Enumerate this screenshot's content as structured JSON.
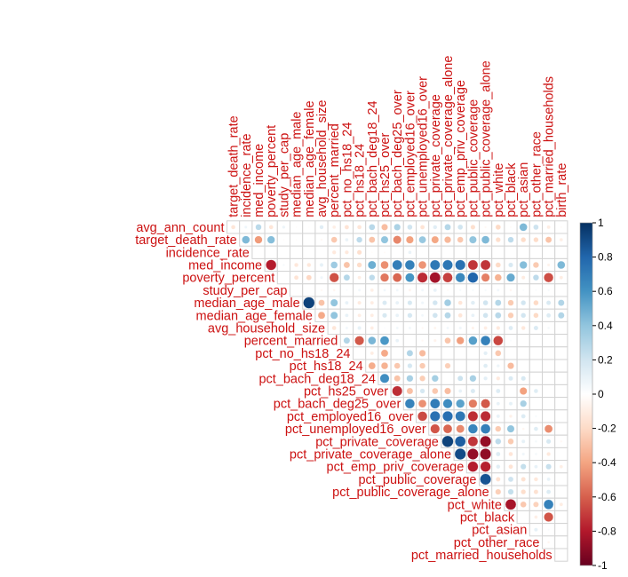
{
  "chart_data": {
    "type": "heatmap",
    "layout": "upper-triangle",
    "glyph": "circle",
    "title": "",
    "xlabel": "",
    "ylabel": "",
    "row_labels": [
      "avg_ann_count",
      "target_death_rate",
      "incidence_rate",
      "med_income",
      "poverty_percent",
      "study_per_cap",
      "median_age_male",
      "median_age_female",
      "avg_household_size",
      "percent_married",
      "pct_no_hs18_24",
      "pct_hs18_24",
      "pct_bach_deg18_24",
      "pct_hs25_over",
      "pct_bach_deg25_over",
      "pct_employed16_over",
      "pct_unemployed16_over",
      "pct_private_coverage",
      "pct_private_coverage_alone",
      "pct_emp_priv_coverage",
      "pct_public_coverage",
      "pct_public_coverage_alone",
      "pct_white",
      "pct_black",
      "pct_asian",
      "pct_other_race",
      "pct_married_households"
    ],
    "col_labels": [
      "target_death_rate",
      "incidence_rate",
      "med_income",
      "poverty_percent",
      "study_per_cap",
      "median_age_male",
      "median_age_female",
      "avg_household_size",
      "percent_married",
      "pct_no_hs18_24",
      "pct_hs18_24",
      "pct_bach_deg18_24",
      "pct_hs25_over",
      "pct_bach_deg25_over",
      "pct_employed16_over",
      "pct_unemployed16_over",
      "pct_private_coverage",
      "pct_private_coverage_alone",
      "pct_emp_priv_coverage",
      "pct_public_coverage",
      "pct_public_coverage_alone",
      "pct_white",
      "pct_black",
      "pct_asian",
      "pct_other_race",
      "pct_married_households",
      "birth_rate"
    ],
    "values": [
      [
        -0.14,
        0.07,
        0.27,
        -0.14,
        0.08,
        -0.02,
        -0.02,
        0.13,
        -0.09,
        -0.15,
        -0.14,
        0.28,
        -0.31,
        0.32,
        0.2,
        -0.15,
        0.13,
        0.29,
        0.2,
        -0.17,
        -0.04,
        -0.2,
        -0.03,
        0.45,
        0.21,
        -0.1,
        -0.03
      ],
      [
        0.45,
        -0.43,
        0.43,
        -0.02,
        -0.02,
        0.01,
        -0.04,
        -0.27,
        0.09,
        0.26,
        -0.29,
        0.4,
        -0.49,
        -0.41,
        0.38,
        -0.39,
        -0.33,
        -0.27,
        0.4,
        0.45,
        -0.18,
        0.26,
        -0.19,
        -0.19,
        -0.29,
        -0.09,
        0.0
      ],
      [
        0.0,
        0.0,
        0.0,
        0.0,
        0.0,
        0.0,
        -0.12,
        -0.12,
        -0.17,
        -0.02,
        -0.03,
        0.0,
        0.09,
        0.01,
        0.0,
        0.0,
        0.0,
        0.0,
        0.0,
        0.0,
        0.0,
        0.0,
        0.0,
        0.0,
        0.0,
        0.0,
        0.0
      ],
      [
        -0.79,
        0.04,
        -0.13,
        -0.13,
        0.11,
        0.36,
        -0.29,
        -0.19,
        0.49,
        -0.46,
        0.7,
        0.68,
        -0.45,
        0.72,
        0.73,
        0.75,
        -0.72,
        -0.72,
        -0.2,
        0.17,
        0.43,
        -0.26,
        -0.07,
        0.45,
        -0.1,
        0.0,
        0.0
      ],
      [
        0.0,
        -0.15,
        -0.21,
        0.07,
        -0.64,
        0.29,
        -0.1,
        0.26,
        -0.53,
        -0.58,
        0.59,
        -0.75,
        -0.84,
        -0.69,
        0.65,
        0.8,
        -0.51,
        -0.35,
        0.51,
        -0.11,
        0.26,
        -0.65,
        -0.1,
        0.0,
        0.0,
        0.0,
        0.0
      ],
      [
        0.0,
        0.0,
        -0.04,
        -0.05,
        0.03,
        0.06,
        -0.09,
        0.06,
        0.06,
        -0.06,
        0.06,
        0.1,
        -0.03,
        0.04,
        0.04,
        0.04,
        0.06,
        -0.05,
        0.03,
        0.03,
        0.04,
        0.0,
        0.0,
        0.0,
        0.0,
        0.0,
        0.0
      ],
      [
        0.93,
        -0.29,
        0.4,
        0.1,
        -0.11,
        -0.1,
        0.16,
        0.1,
        0.17,
        0.07,
        0.19,
        0.35,
        -0.14,
        0.13,
        0.2,
        0.29,
        -0.26,
        0.19,
        -0.2,
        0.16,
        0.3,
        0.31,
        0.0,
        0.0,
        0.0,
        0.0,
        0.0
      ],
      [
        -0.38,
        0.4,
        0.1,
        -0.1,
        -0.1,
        0.17,
        0.1,
        0.18,
        0.06,
        0.2,
        0.29,
        -0.14,
        0.1,
        0.2,
        0.28,
        -0.25,
        0.19,
        -0.2,
        0.15,
        0.3,
        0.3,
        0.0,
        0.0,
        0.0,
        0.0,
        0.0,
        0.0
      ],
      [
        -0.14,
        0.06,
        0.11,
        -0.1,
        0.02,
        0.06,
        0.06,
        -0.04,
        -0.06,
        0.06,
        0.07,
        -0.07,
        -0.1,
        -0.12,
        0.15,
        -0.13,
        0.16,
        0.05,
        0.0,
        0.0,
        0.0,
        0.0,
        0.0,
        0.0,
        0.0,
        0.0,
        0.0
      ],
      [
        0.3,
        -0.62,
        0.46,
        0.58,
        0.1,
        0.0,
        -0.04,
        -0.07,
        -0.28,
        -0.42,
        0.55,
        0.68,
        -0.67,
        0.03,
        0.0,
        0.0,
        0.0,
        0.0,
        0.0,
        0.0,
        0.0,
        0.0,
        0.0,
        0.0,
        0.0,
        0.0,
        0.0
      ],
      [
        0.0,
        -0.1,
        -0.38,
        0.0,
        0.3,
        -0.32,
        0.0,
        0.0,
        0.0,
        0.0,
        0.12,
        -0.27,
        0.0,
        0.0,
        0.0,
        0.0,
        0.0,
        0.0,
        0.0,
        0.0,
        0.0,
        0.0,
        0.0,
        0.0,
        0.0,
        0.0,
        0.0
      ],
      [
        -0.37,
        -0.35,
        -0.27,
        0.18,
        -0.26,
        0.0,
        -0.24,
        0.0,
        0.0,
        0.14,
        0.08,
        -0.32,
        0.0,
        0.0,
        0.0,
        0.0,
        0.0,
        0.0,
        0.0,
        0.0,
        0.0,
        0.0,
        0.0,
        0.0,
        0.0,
        0.0,
        0.0
      ],
      [
        0.62,
        -0.29,
        0.33,
        -0.25,
        0.34,
        0.0,
        0.22,
        0.33,
        0.12,
        -0.12,
        0.16,
        0.17,
        0.0,
        0.0,
        0.0,
        0.0,
        0.0,
        0.0,
        0.0,
        0.0,
        0.0,
        0.0,
        0.0,
        0.0,
        0.0,
        0.0,
        0.0
      ],
      [
        -0.74,
        -0.3,
        0.18,
        -0.27,
        -0.31,
        0.1,
        0.16,
        0.0,
        0.15,
        0.0,
        -0.41,
        0.14,
        0.0,
        0.0,
        0.0,
        0.0,
        0.0,
        0.0,
        0.0,
        0.0,
        0.0,
        0.0,
        0.0,
        0.0,
        0.0,
        0.0,
        0.0
      ],
      [
        0.67,
        -0.46,
        0.7,
        0.63,
        0.54,
        -0.52,
        -0.62,
        0.1,
        0.11,
        0.33,
        0.0,
        0.0,
        0.0,
        0.0,
        0.0,
        0.0,
        0.0,
        0.0,
        0.0,
        0.0,
        0.0,
        0.0,
        0.0,
        0.0,
        0.0,
        0.0,
        0.0
      ],
      [
        -0.66,
        0.75,
        0.76,
        0.72,
        -0.74,
        -0.75,
        0.1,
        -0.08,
        0.15,
        0.04,
        0.0,
        0.0,
        0.0,
        0.0,
        0.0,
        0.0,
        0.0,
        0.0,
        0.0,
        0.0,
        0.0,
        0.0,
        0.0,
        0.0,
        0.0,
        0.0,
        0.0
      ],
      [
        -0.63,
        -0.58,
        -0.48,
        0.66,
        0.69,
        -0.26,
        0.4,
        -0.05,
        0.14,
        -0.47,
        0.0,
        0.0,
        0.0,
        0.0,
        0.0,
        0.0,
        0.0,
        0.0,
        0.0,
        0.0,
        0.0,
        0.0,
        0.0,
        0.0,
        0.0,
        0.0,
        0.0
      ],
      [
        0.93,
        0.83,
        -0.72,
        -0.88,
        0.26,
        -0.26,
        0.11,
        0.05,
        0.17,
        -0.04,
        0.0,
        0.0,
        0.0,
        0.0,
        0.0,
        0.0,
        0.0,
        0.0,
        0.0,
        0.0,
        0.0,
        0.0,
        0.0,
        0.0,
        0.0,
        0.0,
        0.0
      ],
      [
        0.9,
        -0.88,
        -0.89,
        0.15,
        -0.14,
        0.07,
        0.05,
        -0.12,
        0.0,
        0.0,
        0.0,
        0.0,
        0.0,
        0.0,
        0.0,
        0.0,
        0.0,
        0.0,
        0.0,
        0.0,
        0.0,
        0.0,
        0.0,
        0.0,
        0.0,
        0.0,
        0.0
      ],
      [
        -0.79,
        -0.78,
        0.13,
        -0.15,
        0.24,
        0.1,
        0.23,
        -0.09,
        0.0,
        0.0,
        0.0,
        0.0,
        0.0,
        0.0,
        0.0,
        0.0,
        0.0,
        0.0,
        0.0,
        0.0,
        0.0,
        0.0,
        0.0,
        0.0,
        0.0,
        0.0,
        0.0
      ],
      [
        0.87,
        -0.16,
        0.21,
        -0.16,
        -0.13,
        0.1,
        0.0,
        0.0,
        0.0,
        0.0,
        0.0,
        0.0,
        0.0,
        0.0,
        0.0,
        0.0,
        0.0,
        0.0,
        0.0,
        0.0,
        0.0,
        0.0,
        0.0,
        0.0,
        0.0,
        0.0,
        0.0
      ],
      [
        -0.24,
        0.24,
        -0.18,
        -0.16,
        0.15,
        0.0,
        0.0,
        0.0,
        0.0,
        0.0,
        0.0,
        0.0,
        0.0,
        0.0,
        0.0,
        0.0,
        0.0,
        0.0,
        0.0,
        0.0,
        0.0,
        0.0,
        0.0,
        0.0,
        0.0,
        0.0,
        0.0
      ],
      [
        -0.83,
        -0.27,
        -0.23,
        0.68,
        -0.1,
        0.0,
        0.0,
        0.0,
        0.0,
        0.0,
        0.0,
        0.0,
        0.0,
        0.0,
        0.0,
        0.0,
        0.0,
        0.0,
        0.0,
        0.0,
        0.0,
        0.0,
        0.0,
        0.0,
        0.0,
        0.0,
        0.0
      ],
      [
        0.0,
        -0.09,
        -0.63,
        0.0,
        0.0,
        0.0,
        0.0,
        0.0,
        0.0,
        0.0,
        0.0,
        0.0,
        0.0,
        0.0,
        0.0,
        0.0,
        0.0,
        0.0,
        0.0,
        0.0,
        0.0,
        0.0,
        0.0,
        0.0,
        0.0,
        0.0,
        0.0
      ],
      [
        0.11,
        0.03,
        0.0,
        0.0,
        0.0,
        0.0,
        0.0,
        0.0,
        0.0,
        0.0,
        0.0,
        0.0,
        0.0,
        0.0,
        0.0,
        0.0,
        0.0,
        0.0,
        0.0,
        0.0,
        0.0,
        0.0,
        0.0,
        0.0,
        0.0,
        0.0,
        0.0
      ],
      [
        -0.05,
        0.0,
        0.0,
        0.0,
        0.0,
        0.0,
        0.0,
        0.0,
        0.0,
        0.0,
        0.0,
        0.0,
        0.0,
        0.0,
        0.0,
        0.0,
        0.0,
        0.0,
        0.0,
        0.0,
        0.0,
        0.0,
        0.0,
        0.0,
        0.0,
        0.0,
        0.0
      ],
      [
        0.0,
        0.0,
        0.0,
        0.0,
        0.0,
        0.0,
        0.0,
        0.0,
        0.0,
        0.0,
        0.0,
        0.0,
        0.0,
        0.0,
        0.0,
        0.0,
        0.0,
        0.0,
        0.0,
        0.0,
        0.0,
        0.0,
        0.0,
        0.0,
        0.0,
        0.0,
        0.0
      ]
    ],
    "colorbar": {
      "min": -1,
      "max": 1,
      "ticks": [
        "1",
        "0.8",
        "0.6",
        "0.4",
        "0.2",
        "0",
        "-0.2",
        "-0.4",
        "-0.6",
        "-0.8",
        "-1"
      ],
      "colors": [
        "#053061",
        "#2166ac",
        "#4393c3",
        "#92c5de",
        "#d1e5f0",
        "#ffffff",
        "#fddbc7",
        "#f4a582",
        "#d6604d",
        "#b2182b",
        "#67001f"
      ]
    },
    "label_color": "#cc1111",
    "grid": true,
    "legend": "right"
  }
}
